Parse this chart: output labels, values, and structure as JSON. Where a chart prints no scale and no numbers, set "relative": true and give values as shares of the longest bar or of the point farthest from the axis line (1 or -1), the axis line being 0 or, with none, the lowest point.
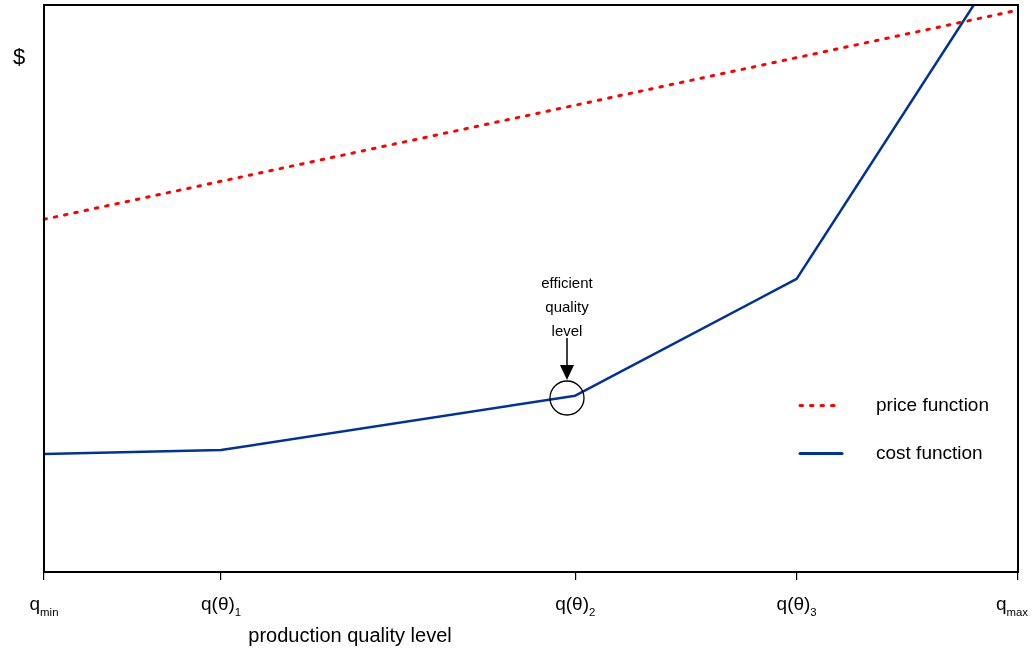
{
  "chart_data": {
    "type": "line",
    "relative": true,
    "xlabel": "production quality level",
    "ylabel": "$",
    "categories": [
      "q$_{min}$",
      null,
      null,
      null,
      "q(θ)$_{1}$",
      null,
      null,
      null,
      null,
      null,
      null,
      null,
      "q(θ)$_{2}$",
      null,
      null,
      null,
      null,
      "q(θ)$_{3}$",
      null,
      null,
      null,
      null,
      "q$_{max}$"
    ],
    "series": [
      {
        "name": "price function",
        "color": "#ff0000",
        "line_style": "dotted",
        "values": [
          0.622,
          null,
          null,
          null,
          null,
          null,
          null,
          null,
          null,
          null,
          null,
          null,
          null,
          null,
          null,
          null,
          null,
          null,
          null,
          null,
          null,
          null,
          0.991
        ]
      },
      {
        "name": "cost function",
        "color": "#003399",
        "line_style": "solid",
        "values": [
          0.208,
          null,
          null,
          null,
          0.215,
          null,
          null,
          null,
          null,
          null,
          null,
          null,
          0.311,
          null,
          null,
          null,
          null,
          0.517,
          null,
          null,
          null,
          1,
          null
        ]
      }
    ],
    "annotations": [
      "efficient quality level"
    ],
    "legend": "right",
    "marker": "none"
  }
}
